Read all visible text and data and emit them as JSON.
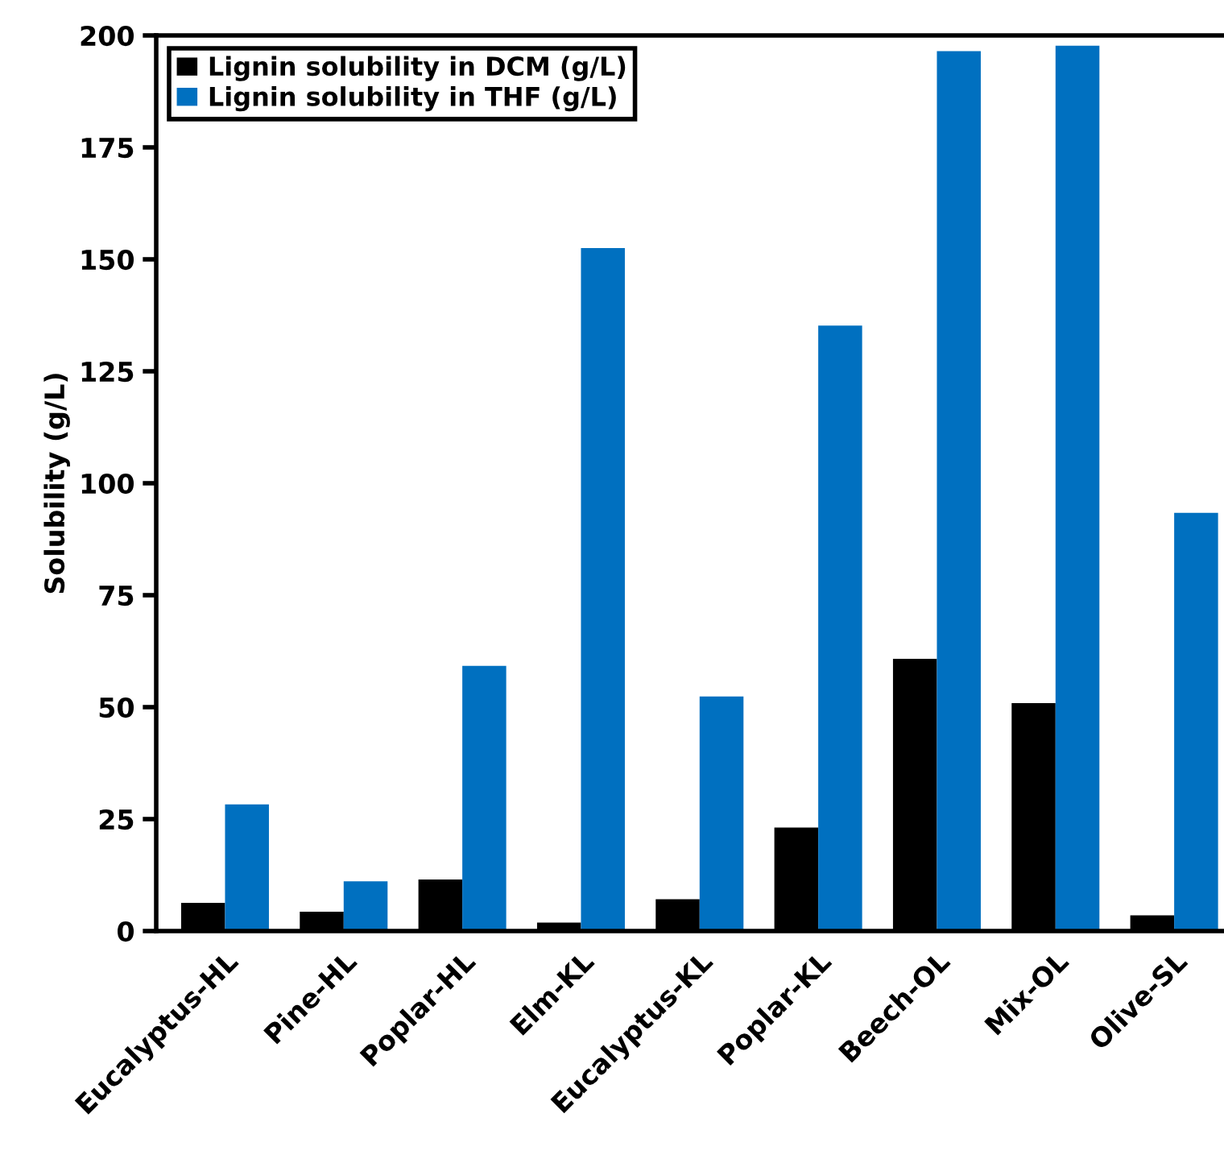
{
  "chart_data": {
    "type": "bar",
    "ylabel": "Solubility (g/L)",
    "categories": [
      "Eucalyptus-HL",
      "Pine-HL",
      "Poplar-HL",
      "Elm-KL",
      "Eucalyptus-KL",
      "Poplar-KL",
      "Beech-OL",
      "Mix-OL",
      "Olive-SL"
    ],
    "series": [
      {
        "name": "Lignin solubility in DCM (g/L)",
        "color": "#000000",
        "values": [
          6.3,
          4.3,
          11.5,
          1.9,
          7.1,
          23.1,
          60.8,
          50.9,
          3.5
        ]
      },
      {
        "name": "Lignin solubility in THF (g/L)",
        "color": "#0070c0",
        "values": [
          28.3,
          11.1,
          59.2,
          152.5,
          52.4,
          135.2,
          196.5,
          197.7,
          93.4
        ]
      }
    ],
    "ylim": [
      0,
      200
    ],
    "yticks": [
      0,
      25,
      50,
      75,
      100,
      125,
      150,
      175,
      200
    ],
    "grid": false,
    "legend": "top left"
  }
}
